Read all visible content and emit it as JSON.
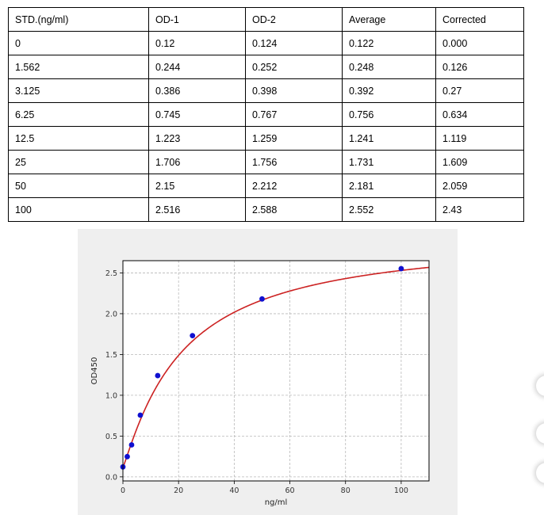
{
  "table": {
    "headers": [
      "STD.(ng/ml)",
      "OD-1",
      "OD-2",
      "Average",
      "Corrected"
    ],
    "rows": [
      [
        "0",
        "0.12",
        "0.124",
        "0.122",
        "0.000"
      ],
      [
        "1.562",
        "0.244",
        "0.252",
        "0.248",
        "0.126"
      ],
      [
        "3.125",
        "0.386",
        "0.398",
        "0.392",
        "0.27"
      ],
      [
        "6.25",
        "0.745",
        "0.767",
        "0.756",
        "0.634"
      ],
      [
        "12.5",
        "1.223",
        "1.259",
        "1.241",
        "1.119"
      ],
      [
        "25",
        "1.706",
        "1.756",
        "1.731",
        "1.609"
      ],
      [
        "50",
        "2.15",
        "2.212",
        "2.181",
        "2.059"
      ],
      [
        "100",
        "2.516",
        "2.588",
        "2.552",
        "2.43"
      ]
    ]
  },
  "chart_data": {
    "type": "scatter",
    "title": "",
    "xlabel": "ng/ml",
    "ylabel": "OD450",
    "xlim": [
      0,
      110
    ],
    "ylim": [
      -0.05,
      2.65
    ],
    "xticks": [
      0,
      20,
      40,
      60,
      80,
      100
    ],
    "yticks": [
      0.0,
      0.5,
      1.0,
      1.5,
      2.0,
      2.5
    ],
    "grid": true,
    "points": {
      "x": [
        0,
        1.562,
        3.125,
        6.25,
        12.5,
        25,
        50,
        100
      ],
      "y": [
        0.122,
        0.248,
        0.392,
        0.756,
        1.241,
        1.731,
        2.181,
        2.552
      ],
      "color": "#1010d0"
    },
    "fit_curve": {
      "color": "#cc2222",
      "type": "4PL",
      "params": {
        "A": 0.115,
        "B": 1.107,
        "C": 21.38,
        "D": 2.968
      }
    }
  }
}
